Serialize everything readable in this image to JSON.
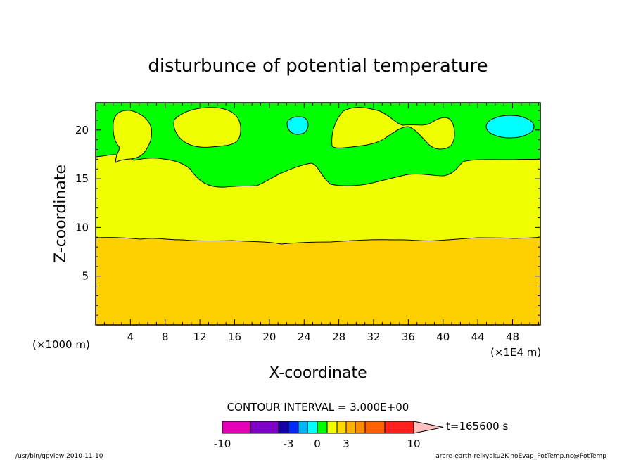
{
  "chart_data": {
    "type": "contour",
    "title": "disturbunce of potential temperature",
    "xlabel": "X-coordinate",
    "ylabel": "Z-coordinate",
    "x_unit_note_left": "(×1000 m)",
    "x_unit_note_right": "(×1E4 m)",
    "xlim": [
      0,
      51.2
    ],
    "ylim": [
      0,
      22.8
    ],
    "xticks": [
      4,
      8,
      12,
      16,
      20,
      24,
      28,
      32,
      36,
      40,
      44,
      48
    ],
    "yticks": [
      5,
      10,
      15,
      20
    ],
    "grid": false,
    "contour_interval_label": "CONTOUR INTERVAL = 3.000E+00",
    "time_label": "t=165600 s",
    "colorbar": {
      "tick_labels": [
        "-10",
        "-3",
        "0",
        "3",
        "10"
      ],
      "colors": [
        "#e400b4",
        "#7c00c8",
        "#1400a8",
        "#0028ff",
        "#00b4ff",
        "#00ffff",
        "#00ff00",
        "#f0ff00",
        "#ffd800",
        "#ffb000",
        "#ff8c00",
        "#ff6000",
        "#ff2020",
        "#ff8080",
        "#ffc0c0"
      ]
    },
    "regions": {
      "lower": {
        "color": "#ffd000",
        "description_level": "about 3 to 6 above 0, z < ~9"
      },
      "middle": {
        "color": "#f0ff00",
        "level": "0 to 3"
      },
      "upper": {
        "color": "#00ff00",
        "level": "-3 to 0"
      },
      "cold_cells": {
        "color": "#00ffff",
        "level": "below -3"
      }
    },
    "boundary_lower": {
      "x": [
        0,
        4,
        8,
        12,
        16,
        20,
        21,
        24,
        28,
        32,
        36,
        40,
        44,
        48,
        51.2
      ],
      "z": [
        9.2,
        9.0,
        9.0,
        8.8,
        8.7,
        8.6,
        8.5,
        8.6,
        8.8,
        8.9,
        8.8,
        8.7,
        9.1,
        9.2,
        9.1
      ]
    }
  },
  "footer": {
    "left": "/usr/bin/gpview  2010-11-10",
    "right": "arare-earth-reikyaku2K-noEvap_PotTemp.nc@PotTemp"
  }
}
